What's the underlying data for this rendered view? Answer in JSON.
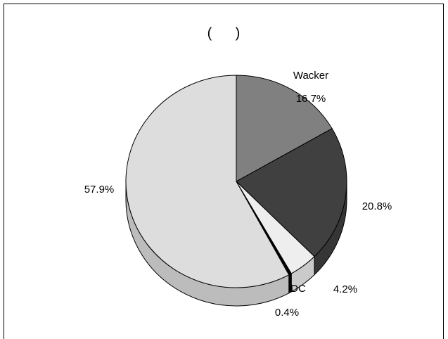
{
  "chart_data": {
    "type": "pie",
    "title": "(      )",
    "categories": [
      "Wacker",
      null,
      null,
      "DC",
      null
    ],
    "values": [
      16.7,
      20.8,
      4.2,
      0.4,
      57.9
    ],
    "value_labels": [
      "16.7%",
      "20.8%",
      "4.2%",
      "0.4%",
      "57.9%"
    ],
    "colors": [
      "#808080",
      "#404040",
      "#eeeeee",
      "#000000",
      "#dddddd"
    ]
  }
}
